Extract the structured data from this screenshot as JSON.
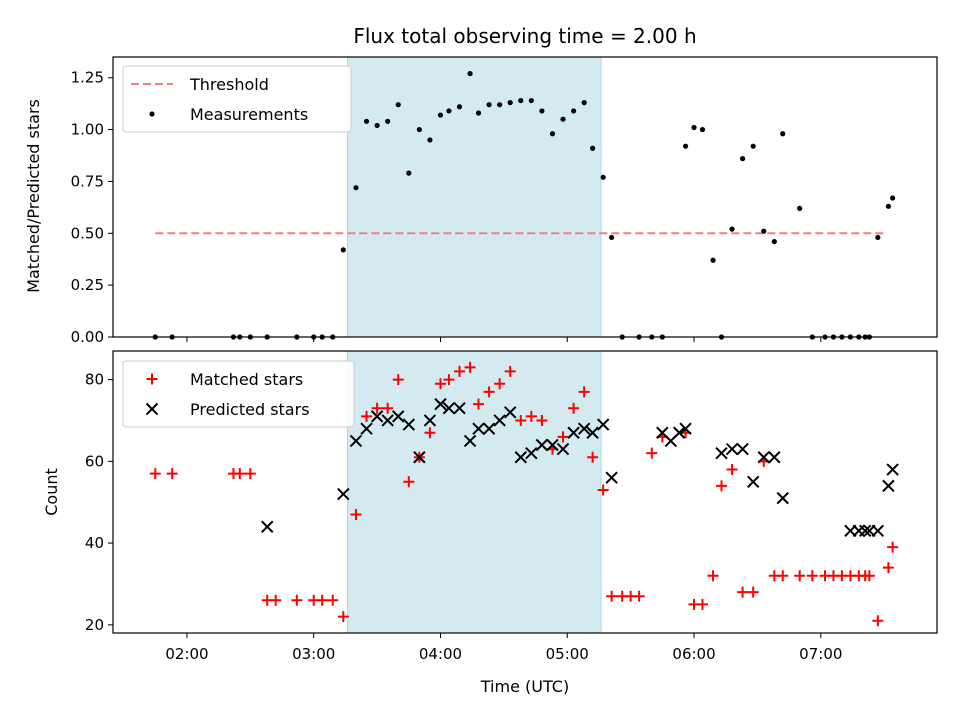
{
  "chart_data": [
    {
      "type": "scatter",
      "title": "Flux total observing time = 2.00 h",
      "xlabel": "",
      "ylabel": "Matched/Predicted stars",
      "ylim": [
        0,
        1.35
      ],
      "yticks": [
        "0.00",
        "0.25",
        "0.50",
        "0.75",
        "1.00",
        "1.25"
      ],
      "grid": false,
      "legend_placement": "top-left",
      "shaded_x_range": [
        "03:16",
        "05:16"
      ],
      "shade_color": "#d3eaf0",
      "threshold": {
        "name": "Threshold",
        "value": 0.5,
        "x_range": [
          "01:45",
          "07:30"
        ],
        "color": "#f08080"
      },
      "series": [
        {
          "name": "Measurements",
          "color": "#000000",
          "x": [
            "01:45",
            "01:53",
            "02:22",
            "02:25",
            "02:30",
            "02:38",
            "02:52",
            "03:00",
            "03:04",
            "03:09",
            "03:14",
            "03:20",
            "03:25",
            "03:30",
            "03:35",
            "03:40",
            "03:45",
            "03:50",
            "03:55",
            "04:00",
            "04:04",
            "04:09",
            "04:14",
            "04:18",
            "04:23",
            "04:28",
            "04:33",
            "04:38",
            "04:43",
            "04:48",
            "04:53",
            "04:58",
            "05:03",
            "05:08",
            "05:12",
            "05:17",
            "05:21",
            "05:26",
            "05:34",
            "05:40",
            "05:45",
            "05:56",
            "06:00",
            "06:04",
            "06:09",
            "06:13",
            "06:18",
            "06:23",
            "06:28",
            "06:33",
            "06:38",
            "06:42",
            "06:50",
            "06:56",
            "07:02",
            "07:06",
            "07:10",
            "07:14",
            "07:18",
            "07:21",
            "07:23",
            "07:27",
            "07:32",
            "07:34"
          ],
          "y": [
            0.0,
            0.0,
            0.0,
            0.0,
            0.0,
            0.0,
            0.0,
            0.0,
            0.0,
            0.0,
            0.42,
            0.72,
            1.04,
            1.02,
            1.04,
            1.12,
            0.79,
            1.0,
            0.95,
            1.07,
            1.09,
            1.11,
            1.27,
            1.08,
            1.12,
            1.12,
            1.13,
            1.14,
            1.14,
            1.09,
            0.98,
            1.05,
            1.09,
            1.13,
            0.91,
            0.77,
            0.48,
            0.0,
            0.0,
            0.0,
            0.0,
            0.92,
            1.01,
            1.0,
            0.37,
            0.0,
            0.52,
            0.86,
            0.92,
            0.51,
            0.46,
            0.98,
            0.62,
            0.0,
            0.0,
            0.0,
            0.0,
            0.0,
            0.0,
            0.0,
            0.0,
            0.48,
            0.63,
            0.67
          ]
        }
      ]
    },
    {
      "type": "scatter",
      "title": "",
      "xlabel": "Time (UTC)",
      "ylabel": "Count",
      "ylim": [
        18,
        87
      ],
      "yticks": [
        "20",
        "40",
        "60",
        "80"
      ],
      "xlim": [
        "01:25",
        "07:55"
      ],
      "xticks": [
        "02:00",
        "03:00",
        "04:00",
        "05:00",
        "06:00",
        "07:00"
      ],
      "grid": false,
      "legend_placement": "top-left",
      "series": [
        {
          "name": "Matched stars",
          "marker": "plus",
          "color": "#ff0000",
          "x": [
            "01:45",
            "01:53",
            "02:22",
            "02:25",
            "02:30",
            "02:38",
            "02:42",
            "02:52",
            "03:00",
            "03:04",
            "03:09",
            "03:14",
            "03:20",
            "03:25",
            "03:30",
            "03:35",
            "03:40",
            "03:45",
            "03:50",
            "03:55",
            "04:00",
            "04:04",
            "04:09",
            "04:14",
            "04:18",
            "04:23",
            "04:28",
            "04:33",
            "04:38",
            "04:43",
            "04:48",
            "04:53",
            "04:58",
            "05:03",
            "05:08",
            "05:12",
            "05:17",
            "05:21",
            "05:26",
            "05:30",
            "05:34",
            "05:40",
            "05:45",
            "05:56",
            "06:00",
            "06:04",
            "06:09",
            "06:13",
            "06:18",
            "06:23",
            "06:28",
            "06:33",
            "06:38",
            "06:42",
            "06:50",
            "06:56",
            "07:02",
            "07:06",
            "07:10",
            "07:14",
            "07:18",
            "07:21",
            "07:23",
            "07:27",
            "07:32",
            "07:34"
          ],
          "y": [
            57,
            57,
            57,
            57,
            57,
            26,
            26,
            26,
            26,
            26,
            26,
            22,
            47,
            71,
            73,
            73,
            80,
            55,
            61,
            67,
            79,
            80,
            82,
            83,
            74,
            77,
            79,
            82,
            70,
            71,
            70,
            63,
            66,
            73,
            77,
            61,
            53,
            27,
            27,
            27,
            27,
            62,
            66,
            67,
            25,
            25,
            32,
            54,
            58,
            28,
            28,
            60,
            32,
            32,
            32,
            32,
            32,
            32,
            32,
            32,
            32,
            32,
            32,
            21,
            34,
            39
          ]
        },
        {
          "name": "Predicted stars",
          "marker": "x",
          "color": "#000000",
          "x": [
            "02:38",
            "03:14",
            "03:20",
            "03:25",
            "03:30",
            "03:35",
            "03:40",
            "03:45",
            "03:50",
            "03:55",
            "04:00",
            "04:04",
            "04:09",
            "04:14",
            "04:18",
            "04:23",
            "04:28",
            "04:33",
            "04:38",
            "04:43",
            "04:48",
            "04:53",
            "04:58",
            "05:03",
            "05:08",
            "05:12",
            "05:17",
            "05:21",
            "05:45",
            "05:49",
            "05:53",
            "05:56",
            "06:13",
            "06:18",
            "06:23",
            "06:28",
            "06:33",
            "06:38",
            "06:42",
            "07:14",
            "07:18",
            "07:21",
            "07:23",
            "07:27",
            "07:32",
            "07:34"
          ],
          "y": [
            44,
            52,
            65,
            68,
            71,
            70,
            71,
            69,
            61,
            70,
            74,
            73,
            73,
            65,
            68,
            68,
            70,
            72,
            61,
            62,
            64,
            64,
            63,
            67,
            68,
            67,
            69,
            56,
            67,
            65,
            67,
            68,
            62,
            63,
            63,
            55,
            61,
            61,
            51,
            43,
            43,
            43,
            43,
            43,
            54,
            58
          ]
        }
      ]
    }
  ]
}
